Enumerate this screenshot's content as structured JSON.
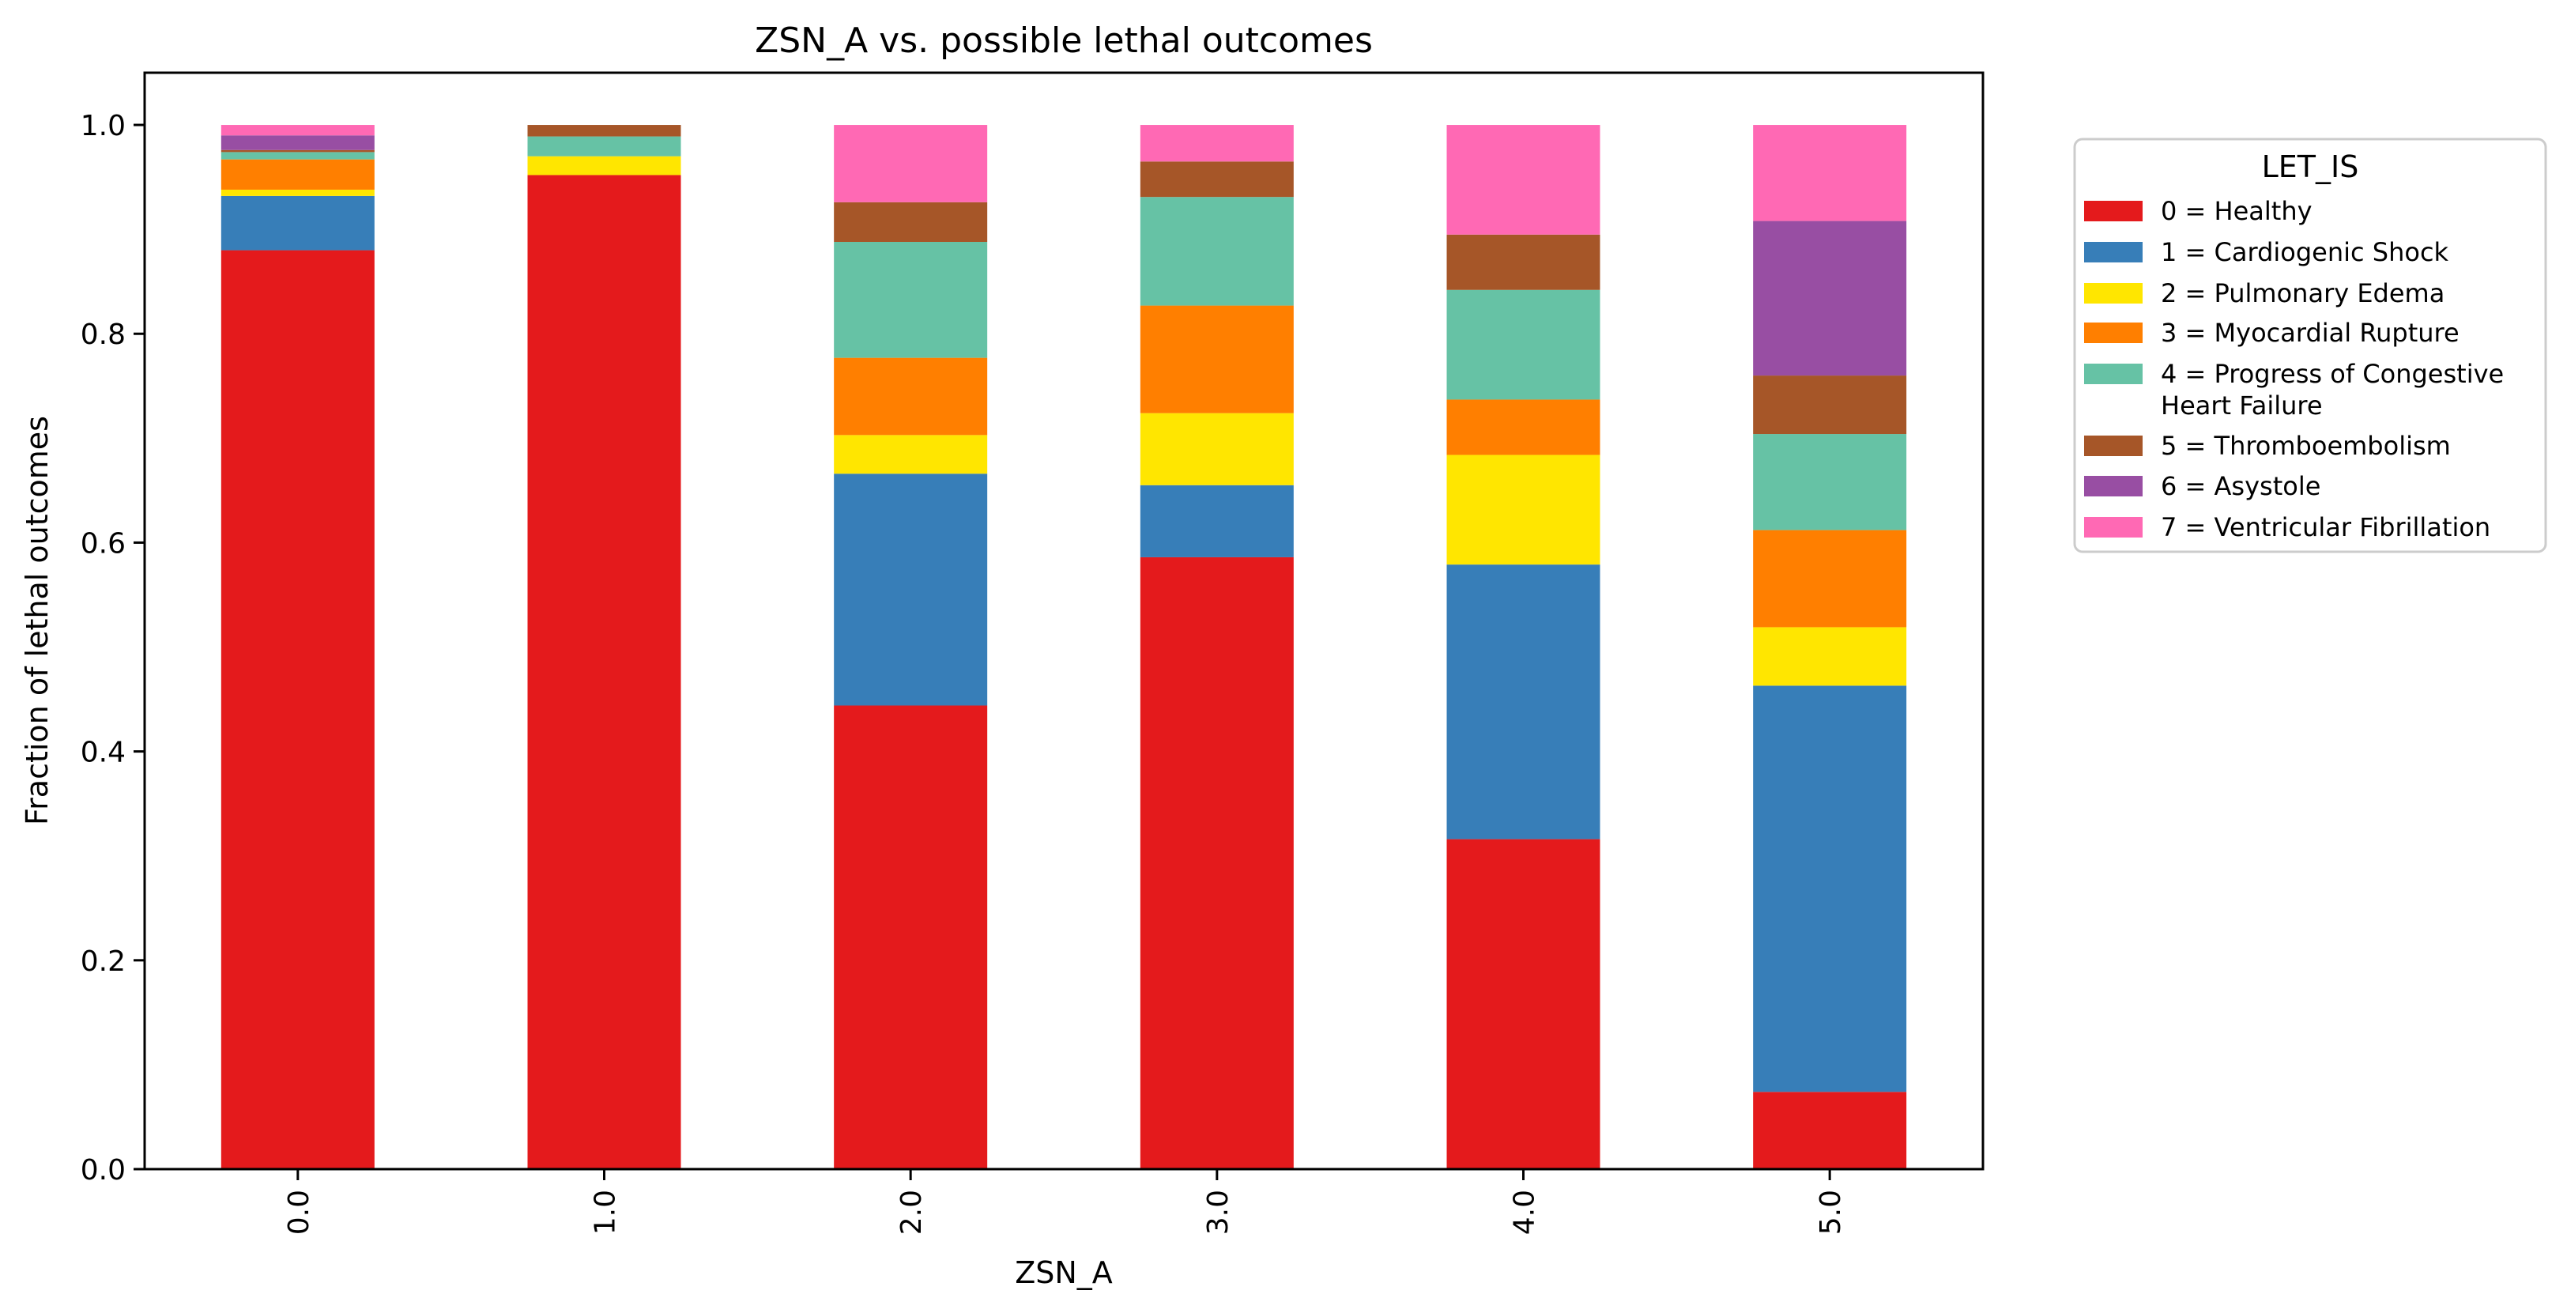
{
  "chart_data": {
    "type": "bar",
    "stacked": true,
    "title": "ZSN_A vs. possible lethal outcomes",
    "xlabel": "ZSN_A",
    "ylabel": "Fraction of lethal outcomes",
    "ylim": [
      0,
      1.05
    ],
    "yticks": [
      "0.0",
      "0.2",
      "0.4",
      "0.6",
      "0.8",
      "1.0"
    ],
    "categories": [
      "0.0",
      "1.0",
      "2.0",
      "3.0",
      "4.0",
      "5.0"
    ],
    "legend": {
      "title": "LET_IS",
      "placement": "outside-right"
    },
    "grid": false,
    "series": [
      {
        "name": "0 = Healthy",
        "color": "#e41a1c",
        "values": [
          0.88,
          0.952,
          0.444,
          0.586,
          0.316,
          0.074
        ]
      },
      {
        "name": "1 = Cardiogenic Shock",
        "color": "#377eb8",
        "values": [
          0.052,
          0.0,
          0.222,
          0.069,
          0.263,
          0.389
        ]
      },
      {
        "name": "2 = Pulmonary Edema",
        "color": "#ffe600",
        "values": [
          0.006,
          0.018,
          0.037,
          0.069,
          0.105,
          0.056
        ]
      },
      {
        "name": "3 = Myocardial Rupture",
        "color": "#ff7f00",
        "values": [
          0.029,
          0.0,
          0.074,
          0.103,
          0.053,
          0.093
        ]
      },
      {
        "name": "4 = Progress of Congestive Heart Failure",
        "color": "#66c2a5",
        "values": [
          0.007,
          0.019,
          0.111,
          0.104,
          0.105,
          0.092
        ]
      },
      {
        "name": "5 = Thromboembolism",
        "color": "#a65628",
        "values": [
          0.002,
          0.011,
          0.038,
          0.034,
          0.053,
          0.056
        ]
      },
      {
        "name": "6 = Asystole",
        "color": "#984ea3",
        "values": [
          0.014,
          0.0,
          0.0,
          0.0,
          0.0,
          0.148
        ]
      },
      {
        "name": "7 = Ventricular Fibrillation",
        "color": "#ff69b4",
        "values": [
          0.01,
          0.0,
          0.074,
          0.035,
          0.105,
          0.092
        ]
      }
    ]
  }
}
